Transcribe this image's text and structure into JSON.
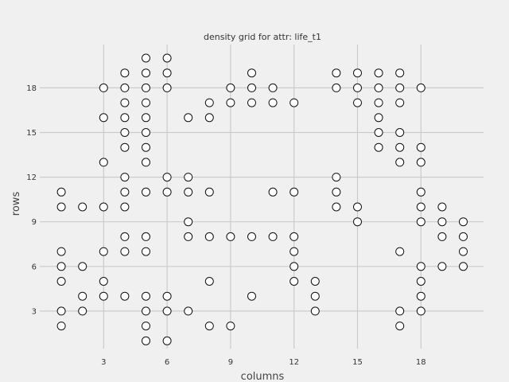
{
  "chart_data": {
    "type": "scatter",
    "title": "density grid for attr: life_t1",
    "xlabel": "columns",
    "ylabel": "rows",
    "xlim": [
      0,
      20
    ],
    "ylim": [
      0,
      20
    ],
    "xticks": [
      3,
      6,
      9,
      12,
      15,
      18
    ],
    "yticks": [
      3,
      6,
      9,
      12,
      15,
      18
    ],
    "grid": true,
    "marker_fill": "#ffffff",
    "marker_edge": "#111111",
    "background": "#f0f0f0",
    "grid_color": "#cbcbcb",
    "points": [
      [
        1,
        2
      ],
      [
        1,
        3
      ],
      [
        1,
        5
      ],
      [
        1,
        6
      ],
      [
        1,
        7
      ],
      [
        1,
        10
      ],
      [
        1,
        11
      ],
      [
        2,
        3
      ],
      [
        2,
        4
      ],
      [
        2,
        6
      ],
      [
        2,
        10
      ],
      [
        3,
        4
      ],
      [
        3,
        5
      ],
      [
        3,
        7
      ],
      [
        3,
        10
      ],
      [
        3,
        13
      ],
      [
        3,
        16
      ],
      [
        3,
        18
      ],
      [
        4,
        4
      ],
      [
        4,
        7
      ],
      [
        4,
        8
      ],
      [
        4,
        10
      ],
      [
        4,
        11
      ],
      [
        4,
        12
      ],
      [
        4,
        14
      ],
      [
        4,
        15
      ],
      [
        4,
        16
      ],
      [
        4,
        17
      ],
      [
        4,
        18
      ],
      [
        4,
        19
      ],
      [
        5,
        1
      ],
      [
        5,
        2
      ],
      [
        5,
        3
      ],
      [
        5,
        4
      ],
      [
        5,
        7
      ],
      [
        5,
        8
      ],
      [
        5,
        11
      ],
      [
        5,
        13
      ],
      [
        5,
        14
      ],
      [
        5,
        15
      ],
      [
        5,
        16
      ],
      [
        5,
        17
      ],
      [
        5,
        18
      ],
      [
        5,
        19
      ],
      [
        5,
        20
      ],
      [
        6,
        1
      ],
      [
        6,
        3
      ],
      [
        6,
        4
      ],
      [
        6,
        11
      ],
      [
        6,
        12
      ],
      [
        6,
        18
      ],
      [
        6,
        19
      ],
      [
        6,
        20
      ],
      [
        7,
        3
      ],
      [
        7,
        8
      ],
      [
        7,
        9
      ],
      [
        7,
        11
      ],
      [
        7,
        12
      ],
      [
        7,
        16
      ],
      [
        8,
        2
      ],
      [
        8,
        5
      ],
      [
        8,
        8
      ],
      [
        8,
        11
      ],
      [
        8,
        16
      ],
      [
        8,
        17
      ],
      [
        9,
        2
      ],
      [
        9,
        8
      ],
      [
        9,
        17
      ],
      [
        9,
        18
      ],
      [
        10,
        4
      ],
      [
        10,
        8
      ],
      [
        10,
        17
      ],
      [
        10,
        18
      ],
      [
        10,
        19
      ],
      [
        11,
        8
      ],
      [
        11,
        11
      ],
      [
        11,
        17
      ],
      [
        11,
        18
      ],
      [
        12,
        5
      ],
      [
        12,
        6
      ],
      [
        12,
        7
      ],
      [
        12,
        8
      ],
      [
        12,
        11
      ],
      [
        12,
        17
      ],
      [
        13,
        3
      ],
      [
        13,
        4
      ],
      [
        13,
        5
      ],
      [
        14,
        10
      ],
      [
        14,
        11
      ],
      [
        14,
        12
      ],
      [
        14,
        18
      ],
      [
        14,
        19
      ],
      [
        15,
        9
      ],
      [
        15,
        10
      ],
      [
        15,
        17
      ],
      [
        15,
        18
      ],
      [
        15,
        19
      ],
      [
        16,
        14
      ],
      [
        16,
        15
      ],
      [
        16,
        16
      ],
      [
        16,
        17
      ],
      [
        16,
        18
      ],
      [
        16,
        19
      ],
      [
        17,
        2
      ],
      [
        17,
        3
      ],
      [
        17,
        7
      ],
      [
        17,
        13
      ],
      [
        17,
        14
      ],
      [
        17,
        15
      ],
      [
        17,
        17
      ],
      [
        17,
        18
      ],
      [
        17,
        19
      ],
      [
        18,
        3
      ],
      [
        18,
        4
      ],
      [
        18,
        5
      ],
      [
        18,
        6
      ],
      [
        18,
        9
      ],
      [
        18,
        10
      ],
      [
        18,
        11
      ],
      [
        18,
        13
      ],
      [
        18,
        14
      ],
      [
        18,
        18
      ],
      [
        19,
        6
      ],
      [
        19,
        8
      ],
      [
        19,
        9
      ],
      [
        19,
        10
      ],
      [
        20,
        6
      ],
      [
        20,
        7
      ],
      [
        20,
        8
      ],
      [
        20,
        9
      ]
    ]
  }
}
